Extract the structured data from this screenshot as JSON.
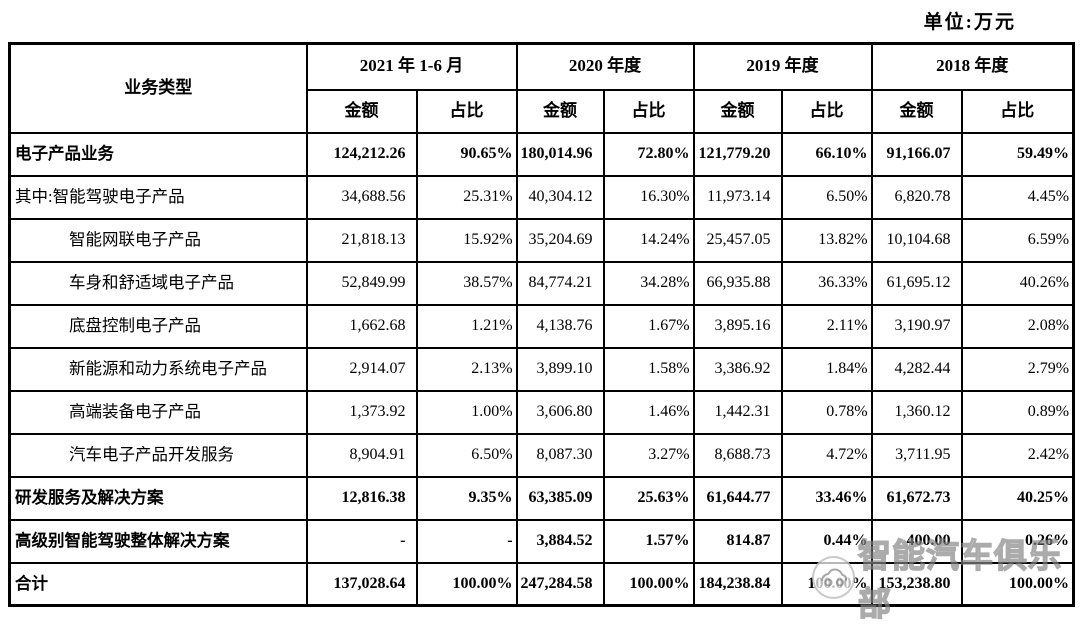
{
  "unit_label": "单位:万元",
  "table": {
    "business_type_header": "业务类型",
    "period_headers": [
      "2021 年 1-6 月",
      "2020 年度",
      "2019 年度",
      "2018 年度"
    ],
    "amount_header": "金额",
    "share_header": "占比",
    "rows": [
      {
        "label": "电子产品业务",
        "bold": true,
        "indent": false,
        "values": [
          "124,212.26",
          "90.65%",
          "180,014.96",
          "72.80%",
          "121,779.20",
          "66.10%",
          "91,166.07",
          "59.49%"
        ]
      },
      {
        "label": "其中:智能驾驶电子产品",
        "bold": false,
        "indent": false,
        "values": [
          "34,688.56",
          "25.31%",
          "40,304.12",
          "16.30%",
          "11,973.14",
          "6.50%",
          "6,820.78",
          "4.45%"
        ]
      },
      {
        "label": "智能网联电子产品",
        "bold": false,
        "indent": true,
        "values": [
          "21,818.13",
          "15.92%",
          "35,204.69",
          "14.24%",
          "25,457.05",
          "13.82%",
          "10,104.68",
          "6.59%"
        ]
      },
      {
        "label": "车身和舒适域电子产品",
        "bold": false,
        "indent": true,
        "values": [
          "52,849.99",
          "38.57%",
          "84,774.21",
          "34.28%",
          "66,935.88",
          "36.33%",
          "61,695.12",
          "40.26%"
        ]
      },
      {
        "label": "底盘控制电子产品",
        "bold": false,
        "indent": true,
        "values": [
          "1,662.68",
          "1.21%",
          "4,138.76",
          "1.67%",
          "3,895.16",
          "2.11%",
          "3,190.97",
          "2.08%"
        ]
      },
      {
        "label": "新能源和动力系统电子产品",
        "bold": false,
        "indent": true,
        "values": [
          "2,914.07",
          "2.13%",
          "3,899.10",
          "1.58%",
          "3,386.92",
          "1.84%",
          "4,282.44",
          "2.79%"
        ]
      },
      {
        "label": "高端装备电子产品",
        "bold": false,
        "indent": true,
        "values": [
          "1,373.92",
          "1.00%",
          "3,606.80",
          "1.46%",
          "1,442.31",
          "0.78%",
          "1,360.12",
          "0.89%"
        ]
      },
      {
        "label": "汽车电子产品开发服务",
        "bold": false,
        "indent": true,
        "values": [
          "8,904.91",
          "6.50%",
          "8,087.30",
          "3.27%",
          "8,688.73",
          "4.72%",
          "3,711.95",
          "2.42%"
        ]
      },
      {
        "label": "研发服务及解决方案",
        "bold": true,
        "indent": false,
        "values": [
          "12,816.38",
          "9.35%",
          "63,385.09",
          "25.63%",
          "61,644.77",
          "33.46%",
          "61,672.73",
          "40.25%"
        ]
      },
      {
        "label": "高级别智能驾驶整体解决方案",
        "bold": true,
        "indent": false,
        "values": [
          "-",
          "-",
          "3,884.52",
          "1.57%",
          "814.87",
          "0.44%",
          "400.00",
          "0.26%"
        ]
      },
      {
        "label": "合计",
        "bold": true,
        "indent": false,
        "values": [
          "137,028.64",
          "100.00%",
          "247,284.58",
          "100.00%",
          "184,238.84",
          "100.00%",
          "153,238.80",
          "100.00%"
        ]
      }
    ]
  },
  "watermark": {
    "text": "智能汽车俱乐部",
    "icon": "car-logo"
  },
  "colors": {
    "border": "#000000",
    "text": "#000000",
    "background": "#ffffff",
    "watermark_gray": "#787878"
  }
}
